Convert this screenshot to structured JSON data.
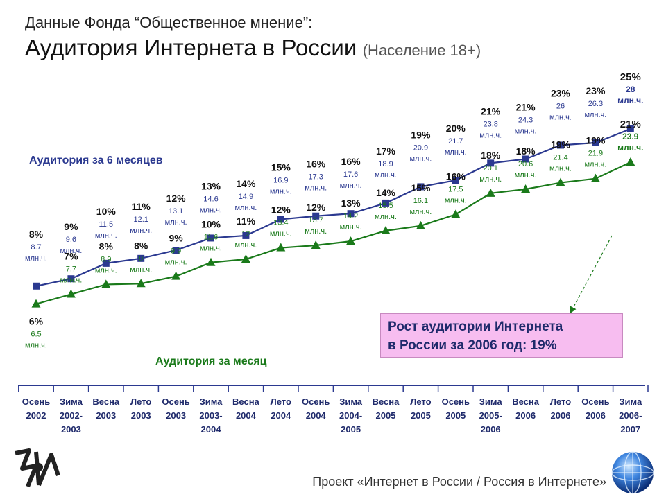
{
  "header": {
    "subtitle": "Данные Фонда “Общественное мнение”:",
    "title": "Аудитория Интернета в России",
    "title_note": "(Население 18+)"
  },
  "callout": {
    "line1": "Рост аудитории Интернета",
    "line2": "в России за 2006 год: 19%"
  },
  "footer": {
    "text": "Проект «Интернет в России / Россия в Интернете»"
  },
  "logos": {
    "left": "ofm-logo-icon",
    "right": "globe-icon"
  },
  "chart_data": {
    "type": "line",
    "categories": [
      [
        "Осень",
        "2002"
      ],
      [
        "Зима",
        "2002-",
        "2003"
      ],
      [
        "Весна",
        "2003"
      ],
      [
        "Лето",
        "2003"
      ],
      [
        "Осень",
        "2003"
      ],
      [
        "Зима",
        "2003-",
        "2004"
      ],
      [
        "Весна",
        "2004"
      ],
      [
        "Лето",
        "2004"
      ],
      [
        "Осень",
        "2004"
      ],
      [
        "Зима",
        "2004-",
        "2005"
      ],
      [
        "Весна",
        "2005"
      ],
      [
        "Лето",
        "2005"
      ],
      [
        "Осень",
        "2005"
      ],
      [
        "Зима",
        "2005-",
        "2006"
      ],
      [
        "Весна",
        "2006"
      ],
      [
        "Лето",
        "2006"
      ],
      [
        "Осень",
        "2006"
      ],
      [
        "Зима",
        "2006-",
        "2007"
      ]
    ],
    "unit": "млн.ч.",
    "series": [
      {
        "name": "Аудитория за 6 месяцев",
        "color": "#2b3990",
        "marker": "square",
        "values": [
          8.7,
          9.6,
          11.5,
          12.1,
          13.1,
          14.6,
          14.9,
          16.9,
          17.3,
          17.6,
          18.9,
          20.9,
          21.7,
          23.8,
          24.3,
          26,
          26.3,
          28
        ],
        "percents": [
          "8%",
          "9%",
          "10%",
          "11%",
          "12%",
          "13%",
          "14%",
          "15%",
          "16%",
          "16%",
          "17%",
          "19%",
          "20%",
          "21%",
          "21%",
          "23%",
          "23%",
          "25%"
        ]
      },
      {
        "name": "Аудитория за месяц",
        "color": "#1a7a1a",
        "marker": "triangle",
        "values": [
          6.5,
          7.7,
          8.9,
          9,
          9.9,
          11.6,
          12,
          13.4,
          13.7,
          14.2,
          15.5,
          16.1,
          17.5,
          20.1,
          20.6,
          21.4,
          21.9,
          23.9
        ],
        "percents": [
          "6%",
          "7%",
          "8%",
          "8%",
          "9%",
          "10%",
          "11%",
          "12%",
          "12%",
          "13%",
          "14%",
          "15%",
          "16%",
          "18%",
          "18%",
          "19%",
          "19%",
          "21%"
        ]
      }
    ],
    "legend": "inline labels",
    "grid": false
  }
}
